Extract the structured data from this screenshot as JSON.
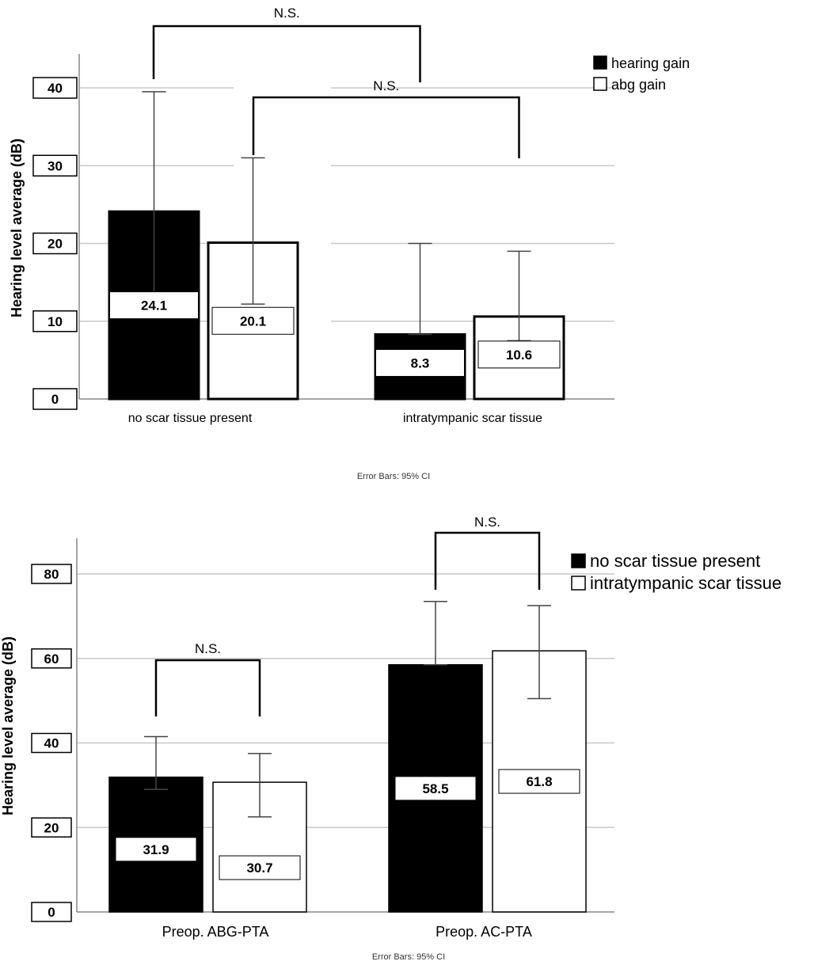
{
  "chart_data": [
    {
      "type": "bar",
      "ylabel": "Hearing level average (dB)",
      "ylim": [
        0,
        42
      ],
      "yticks": [
        0,
        10,
        20,
        30,
        40
      ],
      "grid": true,
      "categories": [
        "no scar tissue present",
        "intratympanic scar tissue"
      ],
      "series": [
        {
          "name": "hearing gain",
          "color": "#000000",
          "values": [
            24.1,
            8.3
          ],
          "ci_low": [
            12.2,
            8.3
          ],
          "ci_high": [
            39.5,
            20.0
          ],
          "labels": [
            "24.1",
            "8.3"
          ]
        },
        {
          "name": "abg gain",
          "color": "#ffffff",
          "values": [
            20.1,
            10.6
          ],
          "ci_low": [
            12.2,
            7.5
          ],
          "ci_high": [
            31.0,
            19.0
          ],
          "labels": [
            "20.1",
            "10.6"
          ]
        }
      ],
      "legend_position": "top-right",
      "annotations": [
        {
          "text": "N.S.",
          "compares": "hearing gain: no scar tissue present vs intratympanic scar tissue"
        },
        {
          "text": "N.S.",
          "compares": "abg gain: no scar tissue present vs intratympanic scar tissue"
        }
      ],
      "footnote": "Error Bars: 95% CI"
    },
    {
      "type": "bar",
      "ylabel": "Hearing level average (dB)",
      "ylim": [
        0,
        85
      ],
      "yticks": [
        0,
        20,
        40,
        60,
        80
      ],
      "grid": true,
      "categories": [
        "Preop. ABG-PTA",
        "Preop. AC-PTA"
      ],
      "series": [
        {
          "name": "no scar tissue present",
          "color": "#000000",
          "values": [
            31.9,
            58.5
          ],
          "ci_low": [
            29.0,
            58.5
          ],
          "ci_high": [
            41.5,
            73.5
          ],
          "labels": [
            "31.9",
            "58.5"
          ]
        },
        {
          "name": "intratympanic scar tissue",
          "color": "#ffffff",
          "values": [
            30.7,
            61.8
          ],
          "ci_low": [
            22.5,
            50.5
          ],
          "ci_high": [
            37.5,
            72.5
          ],
          "labels": [
            "30.7",
            "61.8"
          ]
        }
      ],
      "legend_position": "top-right",
      "annotations": [
        {
          "text": "N.S.",
          "compares": "Preop. ABG-PTA"
        },
        {
          "text": "N.S.",
          "compares": "Preop. AC-PTA"
        }
      ],
      "footnote": "Error Bars: 95% CI"
    }
  ]
}
